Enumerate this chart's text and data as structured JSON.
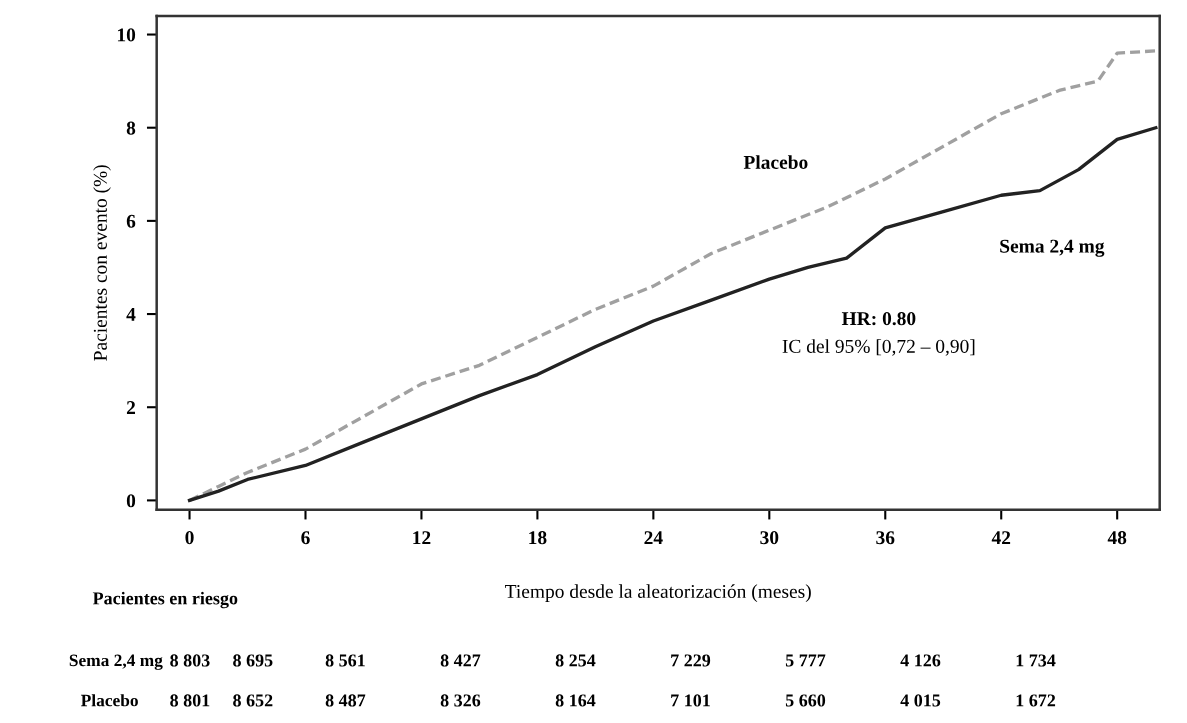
{
  "chart_data": {
    "type": "line",
    "xlabel": "Tiempo desde la aleatorización (meses)",
    "ylabel": "Pacientes con evento (%)",
    "xlim": [
      -1.7,
      50.2
    ],
    "ylim": [
      -0.2,
      10.4
    ],
    "xticks": [
      0,
      6,
      12,
      18,
      24,
      30,
      36,
      42,
      48
    ],
    "yticks": [
      0,
      2,
      4,
      6,
      8,
      10
    ],
    "grid": false,
    "legend": false,
    "series": [
      {
        "name": "Placebo",
        "color": "#a0a0a0",
        "line_style": "dashed",
        "x": [
          0,
          1.5,
          3,
          6,
          9,
          12,
          15,
          18,
          21,
          24,
          27,
          30,
          33,
          36,
          39,
          42,
          45,
          47,
          48,
          50
        ],
        "values": [
          0,
          0.3,
          0.6,
          1.1,
          1.8,
          2.5,
          2.9,
          3.5,
          4.1,
          4.6,
          5.3,
          5.8,
          6.3,
          6.9,
          7.6,
          8.3,
          8.8,
          9.0,
          9.6,
          9.65
        ]
      },
      {
        "name": "Sema 2,4 mg",
        "color": "#222222",
        "line_style": "solid",
        "x": [
          0,
          1.5,
          3,
          6,
          9,
          12,
          15,
          18,
          21,
          24,
          27,
          30,
          32,
          34,
          36,
          39,
          42,
          44,
          46,
          48,
          50
        ],
        "values": [
          0,
          0.2,
          0.45,
          0.75,
          1.25,
          1.75,
          2.25,
          2.7,
          3.3,
          3.85,
          4.3,
          4.75,
          5.0,
          5.2,
          5.85,
          6.2,
          6.55,
          6.65,
          7.1,
          7.75,
          8.0
        ]
      }
    ],
    "annotations": [
      "HR: 0.80",
      "IC del 95% [0,72 – 0,90]",
      "Pacientes en riesgo",
      "Sema 2,4 mg",
      "8 803",
      "8 695",
      "8 561",
      "8 427",
      "8 254",
      "7 229",
      "5 777",
      "4 126",
      "1 734",
      "Placebo",
      "8 801",
      "8 652",
      "8 487",
      "8 326",
      "8 164",
      "7 101",
      "5 660",
      "4 015",
      "1 672"
    ]
  }
}
